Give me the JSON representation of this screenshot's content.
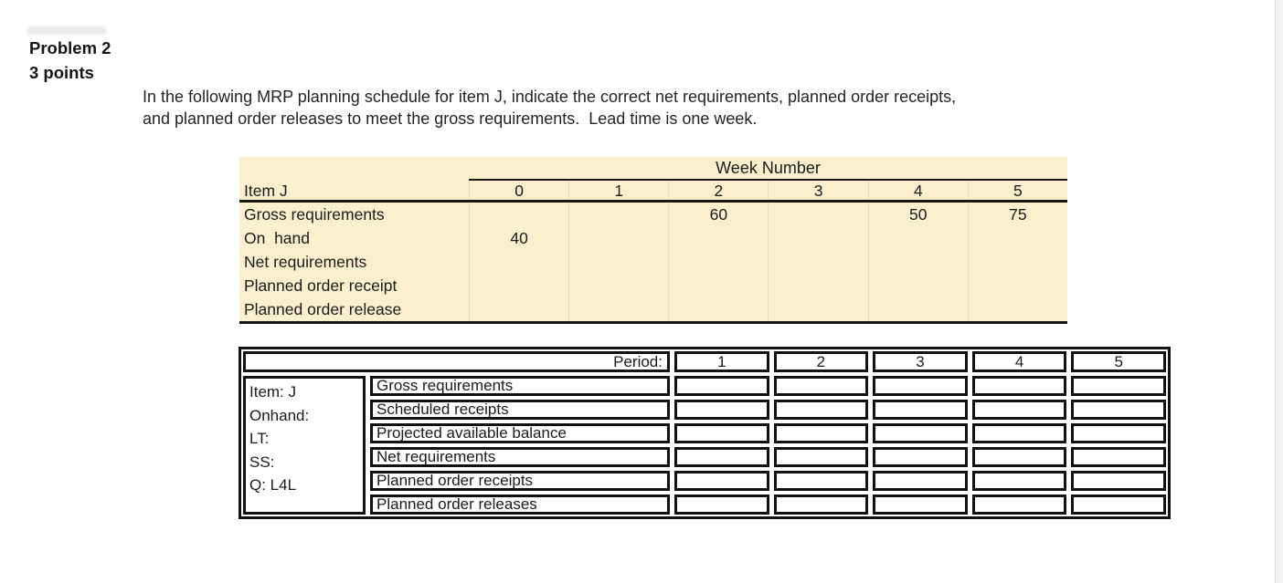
{
  "header": {
    "problem": "Problem 2",
    "points": "3 points",
    "instruction_line1": "In the following MRP planning schedule for item J, indicate the correct net requirements, planned order receipts,",
    "instruction_line2": "and planned order releases to meet the gross requirements.  Lead time is one week."
  },
  "mrp_table": {
    "week_header": "Week Number",
    "item_label": "Item J",
    "week_numbers": [
      "0",
      "1",
      "2",
      "3",
      "4",
      "5"
    ],
    "rows": [
      {
        "label": "Gross requirements",
        "values": [
          "",
          "",
          "60",
          "",
          "50",
          "75"
        ]
      },
      {
        "label": "On  hand",
        "values": [
          "40",
          "",
          "",
          "",
          "",
          ""
        ]
      },
      {
        "label": "Net requirements",
        "values": [
          "",
          "",
          "",
          "",
          "",
          ""
        ]
      },
      {
        "label": "Planned order receipt",
        "values": [
          "",
          "",
          "",
          "",
          "",
          ""
        ]
      },
      {
        "label": "Planned order release",
        "values": [
          "",
          "",
          "",
          "",
          "",
          ""
        ]
      }
    ]
  },
  "worksheet": {
    "period_label": "Period:",
    "periods": [
      "1",
      "2",
      "3",
      "4",
      "5"
    ],
    "info_lines": [
      "Item: J",
      "Onhand:",
      "LT:",
      "SS:",
      "Q: L4L"
    ],
    "row_labels": [
      "Gross requirements",
      "Scheduled receipts",
      "Projected available balance",
      "Net requirements",
      "Planned order receipts",
      "Planned order releases"
    ]
  },
  "colors": {
    "mrp_table_bg": "#FBEFCE",
    "rule_color": "#161616",
    "page_edge": "#F3F3F5"
  }
}
